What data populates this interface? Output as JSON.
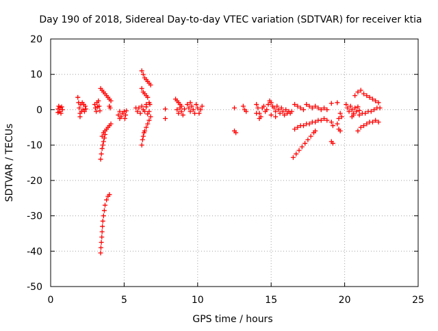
{
  "colors": {
    "series": "#ff0000",
    "grid": "#a0a0a0",
    "axis": "#000000",
    "background": "#ffffff"
  },
  "chart_data": {
    "type": "scatter",
    "title": "Day 190 of 2018, Sidereal Day-to-day VTEC variation (SDTVAR) for receiver ktia",
    "xlabel": "GPS time / hours",
    "ylabel": "SDTVAR / TECUs",
    "xlim": [
      0,
      25
    ],
    "ylim": [
      -50,
      20
    ],
    "xticks": [
      0,
      5,
      10,
      15,
      20,
      25
    ],
    "yticks": [
      -50,
      -40,
      -30,
      -20,
      -10,
      0,
      10,
      20
    ],
    "xtick_labels": [
      "0",
      "5",
      "10",
      "15",
      "20",
      "25"
    ],
    "ytick_labels": [
      "-50",
      "-40",
      "-30",
      "-20",
      "-10",
      "0",
      "10",
      "20"
    ],
    "grid": true,
    "marker": "+",
    "series": [
      {
        "name": "SDTVAR",
        "points": [
          [
            0.5,
            0.2
          ],
          [
            0.55,
            1.0
          ],
          [
            0.6,
            -0.5
          ],
          [
            0.65,
            0.6
          ],
          [
            0.7,
            -1.0
          ],
          [
            0.75,
            0.8
          ],
          [
            0.8,
            0.0
          ],
          [
            0.5,
            -0.8
          ],
          [
            1.85,
            3.5
          ],
          [
            1.9,
            2.0
          ],
          [
            1.95,
            0.5
          ],
          [
            2.0,
            -1.0
          ],
          [
            2.05,
            1.5
          ],
          [
            2.1,
            -0.5
          ],
          [
            2.15,
            2.0
          ],
          [
            2.2,
            0.0
          ],
          [
            2.25,
            1.5
          ],
          [
            2.3,
            -0.5
          ],
          [
            2.35,
            1.0
          ],
          [
            2.4,
            0.2
          ],
          [
            2.0,
            -2.0
          ],
          [
            3.0,
            1.5
          ],
          [
            3.05,
            0.5
          ],
          [
            3.1,
            -0.5
          ],
          [
            3.15,
            2.0
          ],
          [
            3.2,
            0.8
          ],
          [
            3.25,
            2.5
          ],
          [
            3.3,
            1.0
          ],
          [
            3.35,
            -0.3
          ],
          [
            3.4,
            6.0
          ],
          [
            3.5,
            5.5
          ],
          [
            3.6,
            5.0
          ],
          [
            3.7,
            4.5
          ],
          [
            3.8,
            4.0
          ],
          [
            3.9,
            3.5
          ],
          [
            4.0,
            3.0
          ],
          [
            4.1,
            2.5
          ],
          [
            4.0,
            1.0
          ],
          [
            4.05,
            0.5
          ],
          [
            3.4,
            -14.0
          ],
          [
            3.45,
            -12.5
          ],
          [
            3.5,
            -11.0
          ],
          [
            3.55,
            -10.0
          ],
          [
            3.6,
            -9.0
          ],
          [
            3.65,
            -8.0
          ],
          [
            3.7,
            -7.0
          ],
          [
            3.5,
            -7.5
          ],
          [
            3.6,
            -6.5
          ],
          [
            3.7,
            -6.0
          ],
          [
            3.8,
            -5.5
          ],
          [
            3.9,
            -5.0
          ],
          [
            4.0,
            -4.5
          ],
          [
            4.1,
            -4.0
          ],
          [
            3.4,
            -40.5
          ],
          [
            3.42,
            -39.0
          ],
          [
            3.45,
            -37.5
          ],
          [
            3.48,
            -36.0
          ],
          [
            3.5,
            -34.5
          ],
          [
            3.52,
            -33.0
          ],
          [
            3.55,
            -31.5
          ],
          [
            3.6,
            -30.0
          ],
          [
            3.65,
            -28.5
          ],
          [
            3.7,
            -27.0
          ],
          [
            3.8,
            -25.5
          ],
          [
            3.9,
            -24.5
          ],
          [
            4.0,
            -24.0
          ],
          [
            4.6,
            -1.5
          ],
          [
            4.7,
            -0.5
          ],
          [
            4.8,
            -2.0
          ],
          [
            4.9,
            -1.0
          ],
          [
            5.0,
            -0.5
          ],
          [
            5.05,
            -2.5
          ],
          [
            5.1,
            -1.5
          ],
          [
            5.15,
            -0.3
          ],
          [
            4.7,
            -2.5
          ],
          [
            5.8,
            0.5
          ],
          [
            5.9,
            -0.5
          ],
          [
            6.0,
            0.5
          ],
          [
            6.1,
            -1.0
          ],
          [
            6.2,
            1.0
          ],
          [
            6.3,
            0.0
          ],
          [
            6.4,
            -0.5
          ],
          [
            6.5,
            0.8
          ],
          [
            6.6,
            -1.2
          ],
          [
            6.7,
            -0.5
          ],
          [
            6.5,
            1.5
          ],
          [
            6.2,
            11.0
          ],
          [
            6.3,
            10.0
          ],
          [
            6.4,
            9.0
          ],
          [
            6.5,
            8.5
          ],
          [
            6.6,
            8.0
          ],
          [
            6.7,
            7.5
          ],
          [
            6.8,
            7.0
          ],
          [
            6.2,
            6.0
          ],
          [
            6.3,
            5.0
          ],
          [
            6.4,
            4.5
          ],
          [
            6.5,
            4.0
          ],
          [
            6.6,
            3.5
          ],
          [
            6.7,
            2.0
          ],
          [
            6.75,
            1.5
          ],
          [
            6.2,
            -10.0
          ],
          [
            6.25,
            -8.5
          ],
          [
            6.3,
            -7.5
          ],
          [
            6.35,
            -6.5
          ],
          [
            6.4,
            -6.0
          ],
          [
            6.5,
            -5.0
          ],
          [
            6.6,
            -4.0
          ],
          [
            6.7,
            -3.0
          ],
          [
            6.8,
            -2.0
          ],
          [
            7.8,
            0.2
          ],
          [
            7.8,
            -2.5
          ],
          [
            8.5,
            3.0
          ],
          [
            8.6,
            2.5
          ],
          [
            8.7,
            2.0
          ],
          [
            8.8,
            1.5
          ],
          [
            8.9,
            1.0
          ],
          [
            8.6,
            0.0
          ],
          [
            8.7,
            -1.0
          ],
          [
            8.8,
            0.5
          ],
          [
            8.9,
            -0.5
          ],
          [
            9.0,
            -1.5
          ],
          [
            9.1,
            0.2
          ],
          [
            9.3,
            1.5
          ],
          [
            9.4,
            0.5
          ],
          [
            9.5,
            -0.5
          ],
          [
            9.6,
            1.0
          ],
          [
            9.7,
            0.0
          ],
          [
            9.8,
            -1.0
          ],
          [
            9.9,
            1.5
          ],
          [
            10.0,
            0.5
          ],
          [
            10.1,
            -1.0
          ],
          [
            10.2,
            0.0
          ],
          [
            10.3,
            1.0
          ],
          [
            9.5,
            2.0
          ],
          [
            12.5,
            0.5
          ],
          [
            12.5,
            -6.0
          ],
          [
            12.6,
            -6.5
          ],
          [
            13.1,
            1.0
          ],
          [
            13.2,
            0.0
          ],
          [
            13.3,
            -0.5
          ],
          [
            14.0,
            1.5
          ],
          [
            14.1,
            0.5
          ],
          [
            14.2,
            -1.0
          ],
          [
            14.3,
            -2.0
          ],
          [
            14.4,
            0.5
          ],
          [
            14.5,
            1.0
          ],
          [
            14.6,
            -0.5
          ],
          [
            14.7,
            0.0
          ],
          [
            14.8,
            1.5
          ],
          [
            14.9,
            2.5
          ],
          [
            15.0,
            2.0
          ],
          [
            15.1,
            1.0
          ],
          [
            15.2,
            0.5
          ],
          [
            15.3,
            -0.5
          ],
          [
            15.4,
            1.0
          ],
          [
            15.5,
            0.0
          ],
          [
            15.6,
            -1.0
          ],
          [
            15.7,
            0.5
          ],
          [
            15.8,
            -0.5
          ],
          [
            15.9,
            -1.5
          ],
          [
            16.0,
            0.0
          ],
          [
            16.1,
            -1.0
          ],
          [
            16.2,
            -0.5
          ],
          [
            16.3,
            -1.0
          ],
          [
            16.4,
            -0.5
          ],
          [
            14.0,
            -1.0
          ],
          [
            14.2,
            -2.5
          ],
          [
            15.0,
            -1.5
          ],
          [
            15.3,
            -2.0
          ],
          [
            16.6,
            1.5
          ],
          [
            16.8,
            1.0
          ],
          [
            17.0,
            0.5
          ],
          [
            17.2,
            0.0
          ],
          [
            16.6,
            -5.5
          ],
          [
            16.8,
            -5.0
          ],
          [
            17.0,
            -4.5
          ],
          [
            17.2,
            -4.5
          ],
          [
            17.4,
            -4.0
          ],
          [
            17.6,
            -4.0
          ],
          [
            17.8,
            -3.5
          ],
          [
            18.0,
            -3.5
          ],
          [
            18.2,
            -3.0
          ],
          [
            18.4,
            -3.0
          ],
          [
            18.6,
            -2.5
          ],
          [
            18.8,
            -3.0
          ],
          [
            16.5,
            -13.5
          ],
          [
            16.7,
            -12.5
          ],
          [
            16.9,
            -11.5
          ],
          [
            17.1,
            -10.5
          ],
          [
            17.3,
            -9.5
          ],
          [
            17.5,
            -8.5
          ],
          [
            17.7,
            -7.5
          ],
          [
            17.9,
            -6.5
          ],
          [
            18.0,
            -6.0
          ],
          [
            17.4,
            1.5
          ],
          [
            17.6,
            1.0
          ],
          [
            17.8,
            0.5
          ],
          [
            18.0,
            1.0
          ],
          [
            18.2,
            0.5
          ],
          [
            18.4,
            0.0
          ],
          [
            18.6,
            0.5
          ],
          [
            18.8,
            0.0
          ],
          [
            19.1,
            1.8
          ],
          [
            19.5,
            2.0
          ],
          [
            19.1,
            -3.5
          ],
          [
            19.2,
            -4.5
          ],
          [
            19.5,
            -4.0
          ],
          [
            19.6,
            -2.5
          ],
          [
            19.7,
            -1.0
          ],
          [
            19.8,
            -2.0
          ],
          [
            19.6,
            -5.5
          ],
          [
            19.7,
            -6.0
          ],
          [
            19.1,
            -9.0
          ],
          [
            19.2,
            -9.5
          ],
          [
            20.1,
            1.5
          ],
          [
            20.2,
            0.5
          ],
          [
            20.3,
            -0.5
          ],
          [
            20.4,
            1.0
          ],
          [
            20.5,
            0.0
          ],
          [
            20.6,
            -1.0
          ],
          [
            20.7,
            0.5
          ],
          [
            20.8,
            -0.5
          ],
          [
            20.9,
            0.8
          ],
          [
            21.0,
            -0.2
          ],
          [
            20.5,
            -2.0
          ],
          [
            20.6,
            -1.5
          ],
          [
            20.7,
            4.0
          ],
          [
            20.9,
            5.0
          ],
          [
            21.1,
            5.5
          ],
          [
            21.3,
            4.5
          ],
          [
            21.5,
            4.0
          ],
          [
            21.7,
            3.5
          ],
          [
            21.9,
            3.0
          ],
          [
            22.1,
            2.5
          ],
          [
            22.3,
            2.0
          ],
          [
            21.0,
            -1.5
          ],
          [
            21.2,
            -1.0
          ],
          [
            21.4,
            -1.0
          ],
          [
            21.6,
            -0.5
          ],
          [
            21.8,
            -0.5
          ],
          [
            22.0,
            0.0
          ],
          [
            22.2,
            0.5
          ],
          [
            22.4,
            0.5
          ],
          [
            20.9,
            -6.0
          ],
          [
            21.1,
            -5.0
          ],
          [
            21.3,
            -4.5
          ],
          [
            21.5,
            -4.0
          ],
          [
            21.7,
            -3.5
          ],
          [
            21.9,
            -3.5
          ],
          [
            22.1,
            -3.0
          ],
          [
            22.3,
            -3.5
          ]
        ]
      }
    ]
  }
}
